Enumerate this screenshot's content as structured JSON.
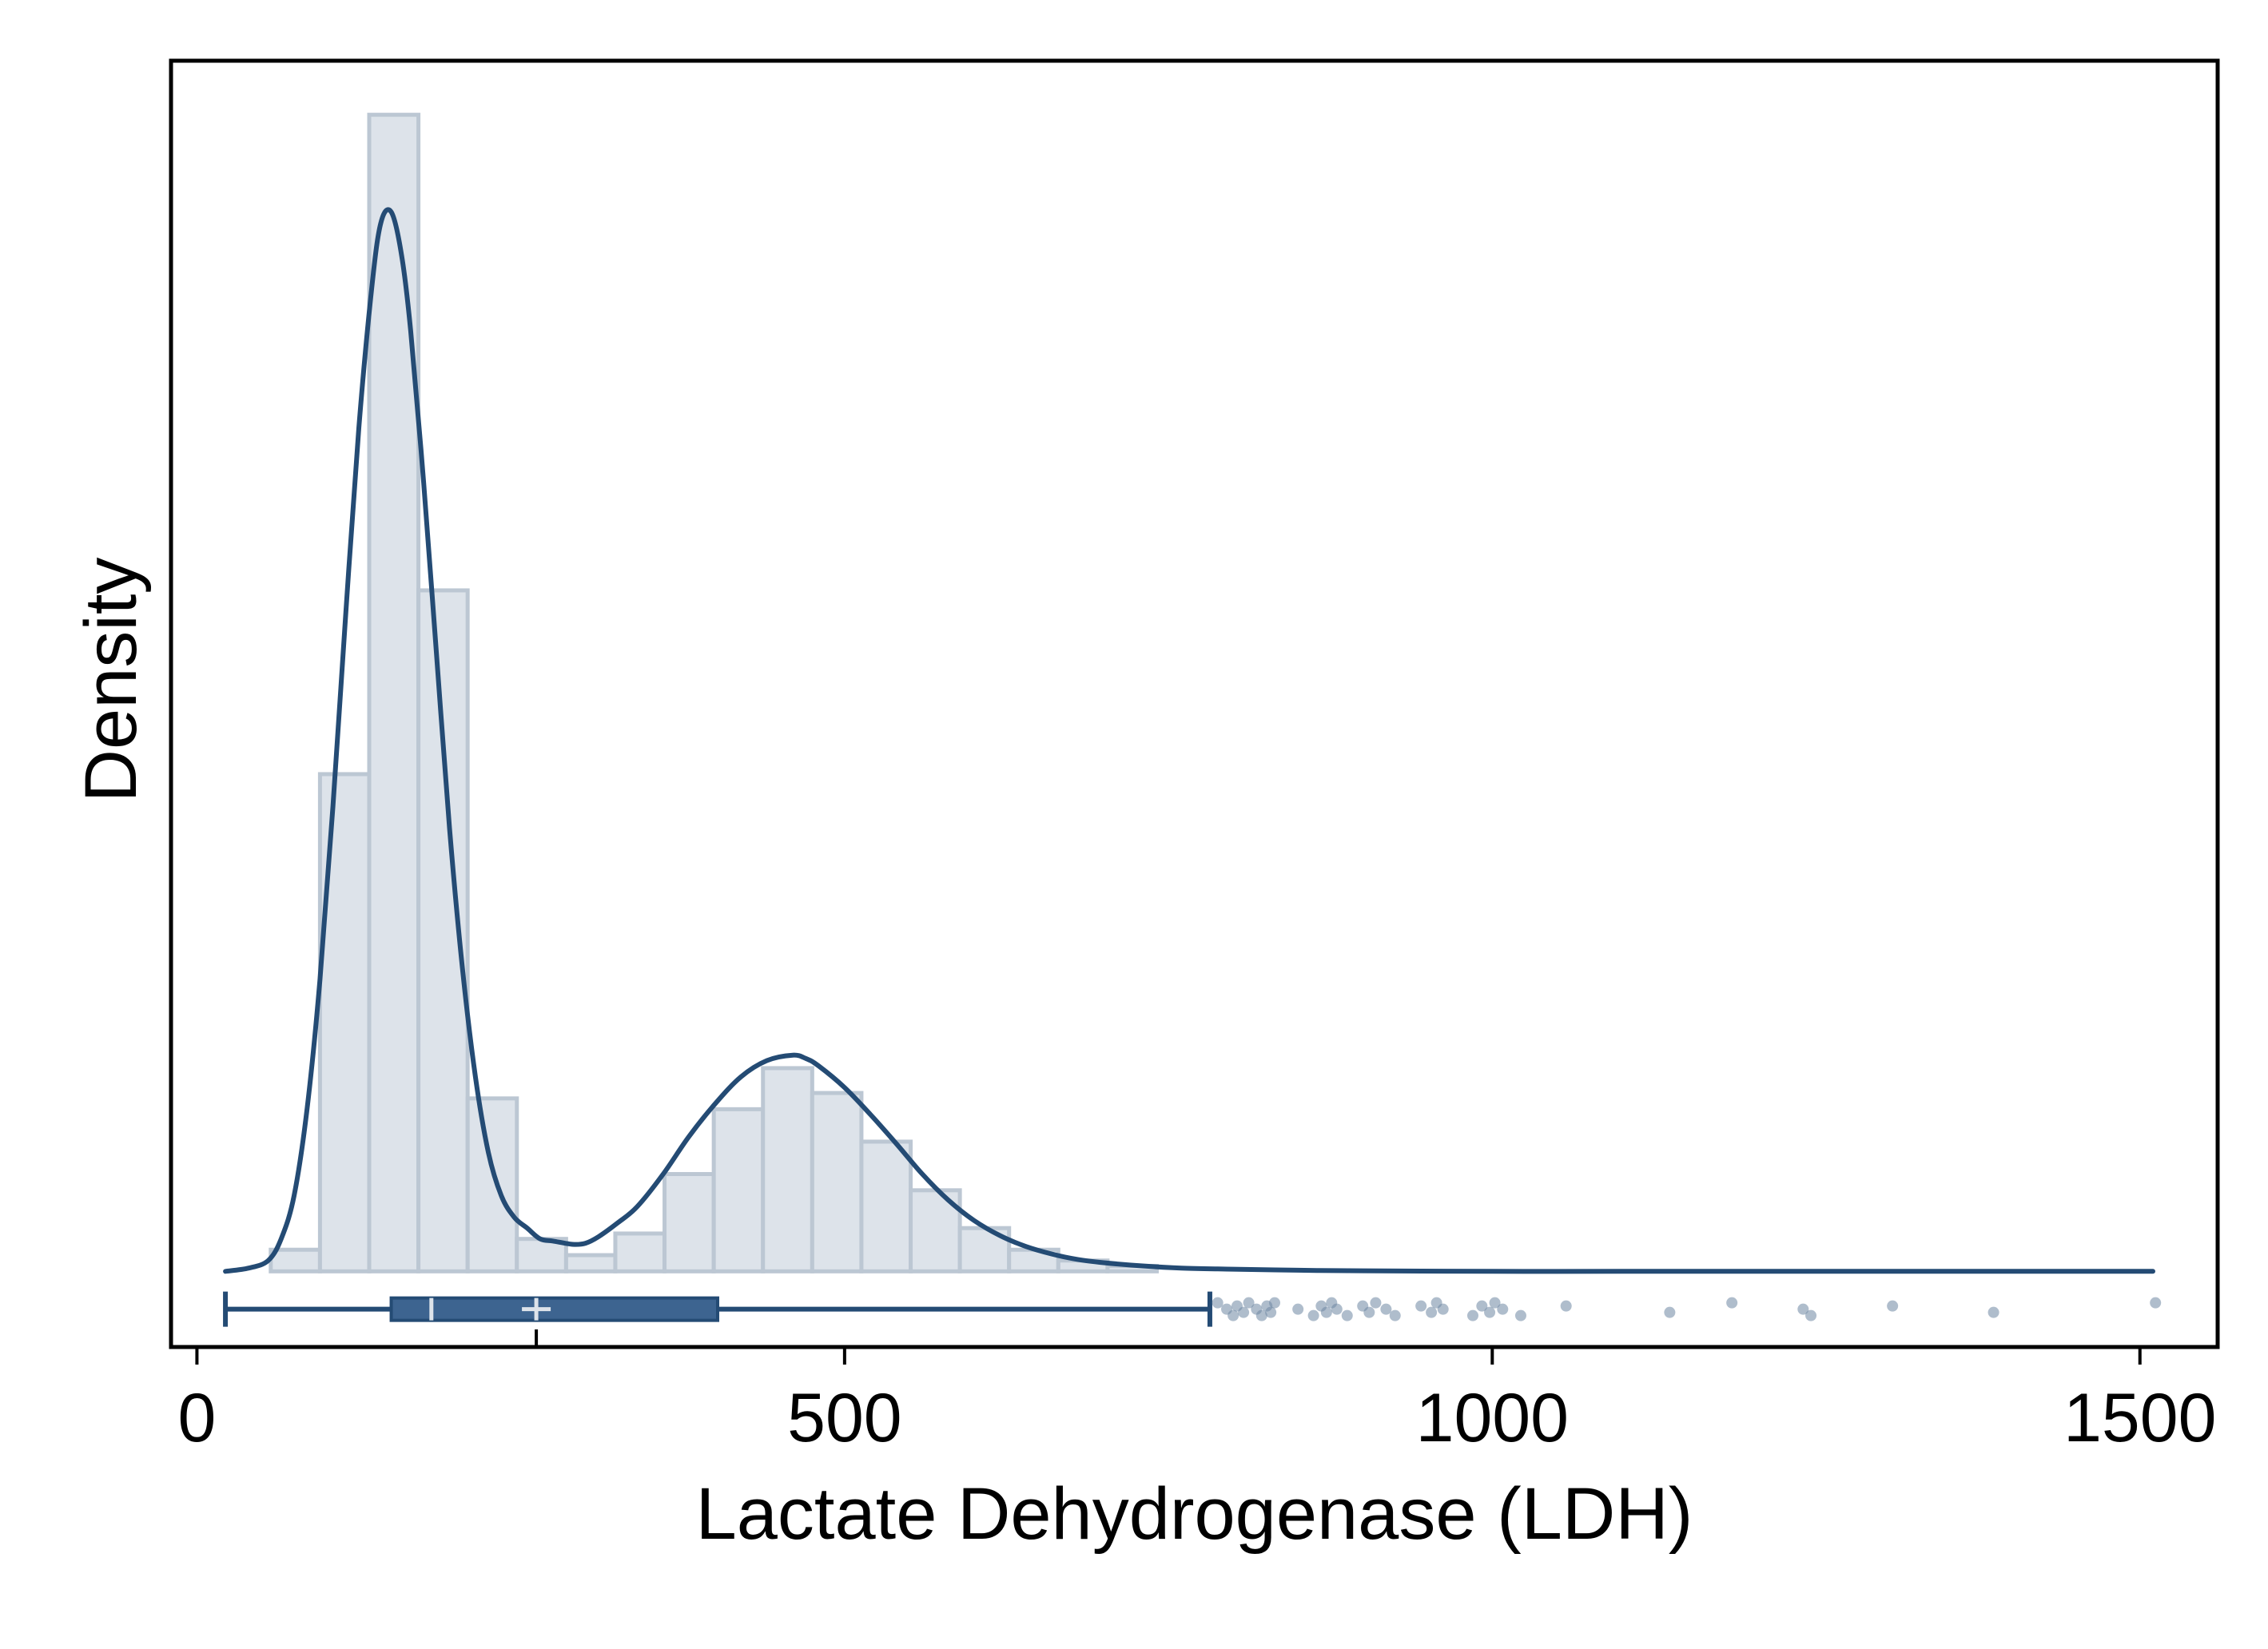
{
  "chart_data": {
    "type": "histogram",
    "title": "",
    "xlabel": "Lactate Dehydrogenase (LDH)",
    "ylabel": "Density",
    "xlim": [
      -20,
      1560
    ],
    "ylim": [
      -0.0007,
      0.0112
    ],
    "x_ticks": [
      0,
      500,
      1000,
      1500
    ],
    "x_tick_labels": [
      "0",
      "500",
      "1000",
      "1500"
    ],
    "y_ticks_shown": false,
    "grid": false,
    "legend": "none",
    "colors": {
      "bar_fill": "#dde3ea",
      "bar_edge": "#bcc7d3",
      "line": "#244b74",
      "box": "#3d6490",
      "outlier": "#6d86a2",
      "frame": "#000000"
    },
    "histogram": {
      "bin_width": 38,
      "bins": [
        {
          "x0": 57,
          "x1": 95,
          "density": 0.0002
        },
        {
          "x0": 95,
          "x1": 133,
          "density": 0.0046
        },
        {
          "x0": 133,
          "x1": 171,
          "density": 0.0107
        },
        {
          "x0": 171,
          "x1": 209,
          "density": 0.0063
        },
        {
          "x0": 209,
          "x1": 247,
          "density": 0.0016
        },
        {
          "x0": 247,
          "x1": 285,
          "density": 0.0003
        },
        {
          "x0": 285,
          "x1": 323,
          "density": 0.00015
        },
        {
          "x0": 323,
          "x1": 361,
          "density": 0.00035
        },
        {
          "x0": 361,
          "x1": 399,
          "density": 0.0009
        },
        {
          "x0": 399,
          "x1": 437,
          "density": 0.0015
        },
        {
          "x0": 437,
          "x1": 475,
          "density": 0.00188
        },
        {
          "x0": 475,
          "x1": 513,
          "density": 0.00165
        },
        {
          "x0": 513,
          "x1": 551,
          "density": 0.0012
        },
        {
          "x0": 551,
          "x1": 589,
          "density": 0.00075
        },
        {
          "x0": 589,
          "x1": 627,
          "density": 0.0004
        },
        {
          "x0": 627,
          "x1": 665,
          "density": 0.0002
        },
        {
          "x0": 665,
          "x1": 703,
          "density": 0.0001
        },
        {
          "x0": 703,
          "x1": 741,
          "density": 5e-05
        }
      ]
    },
    "density_curve": {
      "x": [
        22,
        40,
        55,
        65,
        75,
        85,
        95,
        105,
        115,
        125,
        135,
        142,
        150,
        158,
        165,
        175,
        185,
        195,
        205,
        215,
        225,
        235,
        245,
        255,
        265,
        275,
        290,
        300,
        310,
        325,
        340,
        360,
        380,
        400,
        420,
        440,
        460,
        470,
        480,
        500,
        520,
        540,
        560,
        580,
        600,
        620,
        640,
        660,
        680,
        700,
        730,
        760,
        800,
        850,
        900,
        1000,
        1100,
        1200,
        1300,
        1400,
        1510
      ],
      "y": [
        0.0,
        3e-05,
        0.0001,
        0.0003,
        0.0007,
        0.0015,
        0.0027,
        0.0043,
        0.0061,
        0.0078,
        0.0091,
        0.0097,
        0.0098,
        0.0094,
        0.0087,
        0.0073,
        0.0057,
        0.0041,
        0.0028,
        0.0018,
        0.0011,
        0.0007,
        0.0005,
        0.0004,
        0.0003,
        0.00028,
        0.00025,
        0.00026,
        0.00032,
        0.00045,
        0.0006,
        0.0009,
        0.00125,
        0.00155,
        0.0018,
        0.00195,
        0.002,
        0.00197,
        0.0019,
        0.0017,
        0.00145,
        0.00118,
        0.0009,
        0.00066,
        0.00047,
        0.00033,
        0.00023,
        0.00016,
        0.00011,
        8e-05,
        5e-05,
        3e-05,
        2e-05,
        1e-05,
        5e-06,
        0.0,
        0.0,
        0.0,
        0.0,
        0.0,
        0.0
      ]
    },
    "boxplot": {
      "min": 22,
      "q1": 150,
      "median": 181,
      "mean": 262,
      "q3": 402,
      "whisker_high": 782,
      "y": -0.00035,
      "outliers": [
        788,
        795,
        800,
        803,
        808,
        812,
        818,
        822,
        826,
        829,
        832,
        850,
        862,
        868,
        872,
        876,
        880,
        888,
        900,
        905,
        910,
        918,
        925,
        945,
        953,
        957,
        962,
        985,
        992,
        998,
        1002,
        1008,
        1022,
        1057,
        1137,
        1185,
        1240,
        1246,
        1309,
        1387,
        1512
      ]
    }
  }
}
